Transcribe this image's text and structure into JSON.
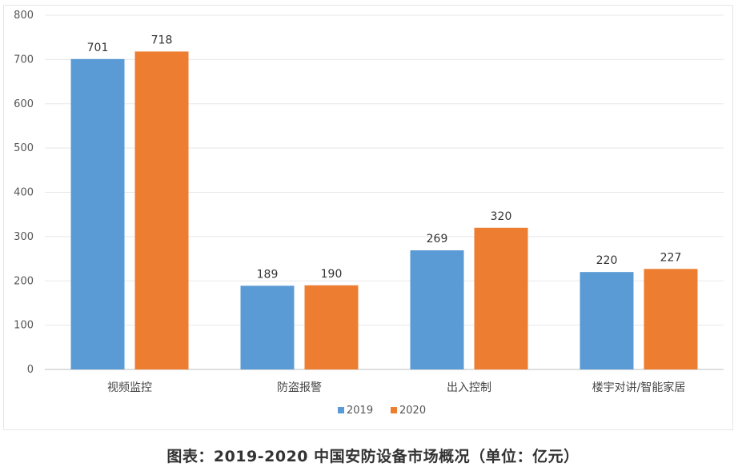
{
  "caption": "图表：2019-2020 中国安防设备市场概况（单位：亿元）",
  "colors": {
    "series_2019": "#5b9bd5",
    "series_2020": "#ed7d31",
    "grid": "#e8e8e8",
    "axis": "#bfbfbf"
  },
  "chart_data": {
    "type": "bar",
    "title": "",
    "xlabel": "",
    "ylabel": "",
    "categories": [
      "视频监控",
      "防盗报警",
      "出入控制",
      "楼宇对讲/智能家居"
    ],
    "series": [
      {
        "name": "2019",
        "values": [
          701,
          189,
          269,
          220
        ]
      },
      {
        "name": "2020",
        "values": [
          718,
          190,
          320,
          227
        ]
      }
    ],
    "ylim": [
      0,
      800
    ],
    "yticks": [
      0,
      100,
      200,
      300,
      400,
      500,
      600,
      700,
      800
    ],
    "grid": true,
    "legend": "bottom-center",
    "data_labels": true
  }
}
